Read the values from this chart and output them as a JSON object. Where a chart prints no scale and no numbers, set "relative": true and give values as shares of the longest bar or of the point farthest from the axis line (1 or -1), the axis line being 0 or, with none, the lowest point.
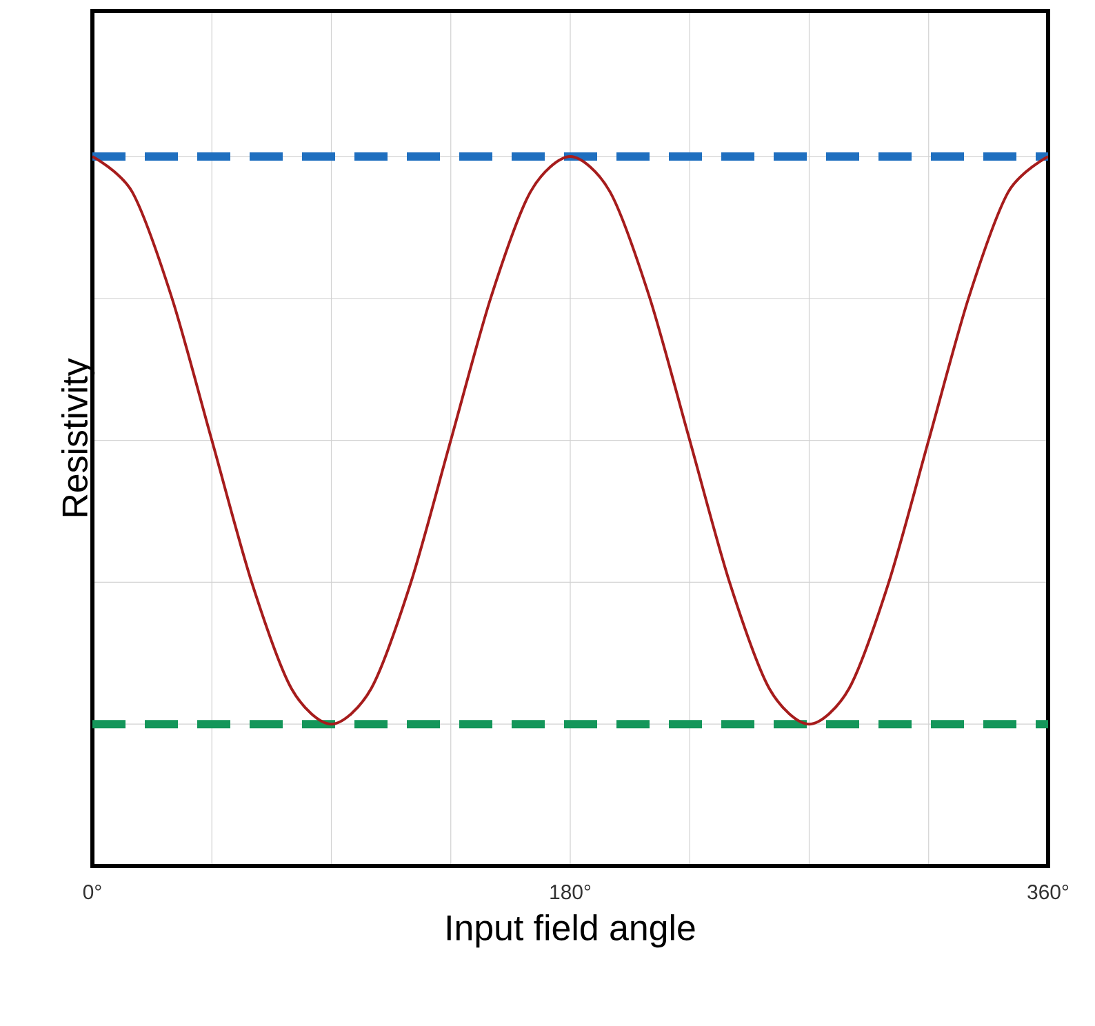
{
  "chart_data": {
    "type": "line",
    "xlabel": "Input field angle",
    "ylabel": "Resistivity",
    "relative": true,
    "grid": true,
    "marker": "none",
    "line_style": "solid",
    "x": [
      0,
      15,
      30,
      45,
      60,
      75,
      90,
      105,
      120,
      135,
      150,
      165,
      180,
      195,
      210,
      225,
      240,
      255,
      270,
      285,
      300,
      315,
      330,
      345,
      360
    ],
    "series": [
      {
        "color": "#a61c1c",
        "values": [
          1,
          0.95,
          0.8,
          0.6,
          0.4,
          0.25,
          0.2,
          0.25,
          0.4,
          0.6,
          0.8,
          0.95,
          1,
          0.95,
          0.8,
          0.6,
          0.4,
          0.25,
          0.2,
          0.25,
          0.4,
          0.6,
          0.8,
          0.95,
          1
        ]
      }
    ],
    "xlim": [
      0,
      360
    ],
    "xticks": [
      {
        "value": 0,
        "label": "0°"
      },
      {
        "value": 45,
        "label": null
      },
      {
        "value": 90,
        "label": null
      },
      {
        "value": 135,
        "label": null
      },
      {
        "value": 180,
        "label": "180°"
      },
      {
        "value": 225,
        "label": null
      },
      {
        "value": 270,
        "label": null
      },
      {
        "value": 315,
        "label": null
      },
      {
        "value": 360,
        "label": "360°"
      }
    ],
    "ref_lines": [
      {
        "axis": "y",
        "value": 1,
        "color": "#1f6fbf",
        "line_style": "dashed"
      },
      {
        "axis": "y",
        "value": 0.2,
        "color": "#14965a",
        "line_style": "dashed"
      }
    ]
  }
}
